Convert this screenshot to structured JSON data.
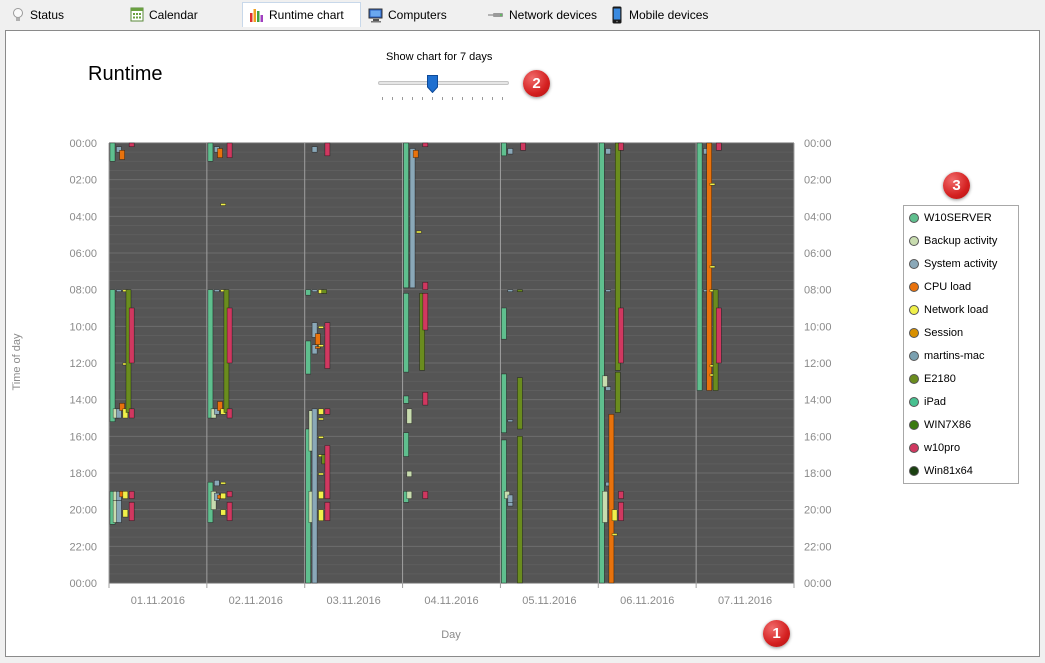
{
  "tabs": [
    {
      "id": "status",
      "label": "Status",
      "icon": "lightbulb-icon"
    },
    {
      "id": "calendar",
      "label": "Calendar",
      "icon": "calendar-icon"
    },
    {
      "id": "runtime",
      "label": "Runtime chart",
      "icon": "bar-chart-icon",
      "active": true
    },
    {
      "id": "computers",
      "label": "Computers",
      "icon": "computer-icon"
    },
    {
      "id": "network",
      "label": "Network devices",
      "icon": "network-device-icon"
    },
    {
      "id": "mobile",
      "label": "Mobile devices",
      "icon": "mobile-phone-icon"
    }
  ],
  "header": {
    "title": "Runtime"
  },
  "slider": {
    "label": "Show chart for 7 days",
    "value": 7,
    "min": 1,
    "max": 14
  },
  "badges": [
    "1",
    "2",
    "3"
  ],
  "legend": [
    {
      "label": "W10SERVER",
      "color": "#5fbf8e"
    },
    {
      "label": "Backup activity",
      "color": "#c8dcaf"
    },
    {
      "label": "System activity",
      "color": "#8aa8b8"
    },
    {
      "label": "CPU load",
      "color": "#e8720c"
    },
    {
      "label": "Network load",
      "color": "#f0f04a"
    },
    {
      "label": "Session",
      "color": "#d89000"
    },
    {
      "label": "martins-mac",
      "color": "#7aa0b0"
    },
    {
      "label": "E2180",
      "color": "#6a8c1e"
    },
    {
      "label": "iPad",
      "color": "#48c090"
    },
    {
      "label": "WIN7X86",
      "color": "#3a7a10"
    },
    {
      "label": "w10pro",
      "color": "#d03860"
    },
    {
      "label": "Win81x64",
      "color": "#1a4010"
    }
  ],
  "chart_data": {
    "type": "bar",
    "xlabel": "Day",
    "ylabel": "Time of day",
    "categories": [
      "01.11.2016",
      "02.11.2016",
      "03.11.2016",
      "04.11.2016",
      "05.11.2016",
      "06.11.2016",
      "07.11.2016"
    ],
    "y_ticks": [
      "00:00",
      "02:00",
      "04:00",
      "06:00",
      "08:00",
      "10:00",
      "12:00",
      "14:00",
      "16:00",
      "18:00",
      "20:00",
      "22:00",
      "00:00"
    ],
    "ylim": [
      "00:00",
      "24:00"
    ],
    "background": "#555555",
    "series": [
      {
        "name": "W10SERVER",
        "color": "#5fbf8e",
        "col": 0,
        "intervals": [
          [
            0,
            0,
            1
          ],
          [
            0,
            8,
            15.2
          ],
          [
            0,
            19,
            20.8
          ],
          [
            1,
            0,
            1
          ],
          [
            1,
            8,
            15
          ],
          [
            1,
            18.5,
            20.7
          ],
          [
            2,
            8,
            8.3
          ],
          [
            2,
            10.8,
            12.6
          ],
          [
            2,
            15.6,
            24
          ],
          [
            3,
            0,
            7.9
          ],
          [
            3,
            8.2,
            12.5
          ],
          [
            3,
            13.8,
            14.2
          ],
          [
            3,
            15.8,
            17.1
          ],
          [
            3,
            19,
            19.6
          ],
          [
            4,
            0,
            0.7
          ],
          [
            4,
            9,
            10.7
          ],
          [
            4,
            12.6,
            15.8
          ],
          [
            4,
            16.2,
            24
          ],
          [
            5,
            0,
            24
          ],
          [
            6,
            0,
            13.5
          ]
        ]
      },
      {
        "name": "Backup activity",
        "color": "#c8dcaf",
        "col": 1,
        "intervals": [
          [
            0,
            14.5,
            15
          ],
          [
            0,
            19,
            19.5
          ],
          [
            0,
            19.5,
            20.7
          ],
          [
            1,
            14.5,
            15
          ],
          [
            1,
            19,
            20
          ],
          [
            2,
            14.6,
            16.8
          ],
          [
            2,
            19,
            20.7
          ],
          [
            3,
            14.5,
            15.3
          ],
          [
            3,
            17.9,
            18.2
          ],
          [
            3,
            19,
            19.4
          ],
          [
            4,
            19,
            19.4
          ],
          [
            5,
            12.7,
            13.3
          ],
          [
            5,
            19,
            20.7
          ]
        ]
      },
      {
        "name": "System activity",
        "color": "#8aa8b8",
        "col": 2,
        "intervals": [
          [
            0,
            0.2,
            0.5
          ],
          [
            0,
            8,
            8.1
          ],
          [
            0,
            14.5,
            15
          ],
          [
            0,
            19,
            19.5
          ],
          [
            0,
            19.5,
            20.7
          ],
          [
            1,
            0.2,
            0.5
          ],
          [
            1,
            8,
            8.1
          ],
          [
            1,
            14.5,
            14.8
          ],
          [
            1,
            18.4,
            18.7
          ],
          [
            1,
            19.1,
            19.5
          ],
          [
            2,
            0.2,
            0.5
          ],
          [
            2,
            8,
            8.1
          ],
          [
            2,
            9.8,
            10.6
          ],
          [
            2,
            11,
            11.5
          ],
          [
            2,
            14.5,
            24
          ],
          [
            3,
            0.3,
            7.9
          ],
          [
            4,
            0.3,
            0.6
          ],
          [
            4,
            8,
            8.1
          ],
          [
            4,
            15.1,
            15.2
          ],
          [
            4,
            19.2,
            19.6
          ],
          [
            4,
            19.6,
            19.8
          ],
          [
            5,
            0.3,
            0.6
          ],
          [
            5,
            8,
            8.1
          ],
          [
            5,
            13.3,
            13.5
          ],
          [
            5,
            18.5,
            18.7
          ],
          [
            6,
            0.3,
            0.6
          ],
          [
            6,
            8,
            8.1
          ]
        ]
      },
      {
        "name": "CPU load",
        "color": "#e8720c",
        "col": 3,
        "intervals": [
          [
            0,
            0.4,
            0.9
          ],
          [
            0,
            14.2,
            14.6
          ],
          [
            0,
            19,
            19.3
          ],
          [
            1,
            0.3,
            0.8
          ],
          [
            1,
            14.1,
            14.6
          ],
          [
            1,
            19.2,
            19.4
          ],
          [
            2,
            10.4,
            11
          ],
          [
            2,
            11.1,
            11.2
          ],
          [
            3,
            0.4,
            0.8
          ],
          [
            5,
            14.8,
            24
          ],
          [
            6,
            0,
            13.5
          ]
        ]
      },
      {
        "name": "Network load",
        "color": "#f0f04a",
        "col": 4,
        "intervals": [
          [
            0,
            8,
            8.1
          ],
          [
            0,
            12,
            12.1
          ],
          [
            0,
            14.5,
            15
          ],
          [
            0,
            19,
            19.4
          ],
          [
            0,
            20,
            20.4
          ],
          [
            1,
            3.3,
            3.4
          ],
          [
            1,
            8,
            8.1
          ],
          [
            1,
            14.5,
            14.8
          ],
          [
            1,
            18.5,
            18.6
          ],
          [
            1,
            19.1,
            19.4
          ],
          [
            1,
            20,
            20.3
          ],
          [
            2,
            8,
            8.2
          ],
          [
            2,
            10,
            10.1
          ],
          [
            2,
            11,
            11.1
          ],
          [
            2,
            14.5,
            14.8
          ],
          [
            2,
            15,
            15.1
          ],
          [
            2,
            16,
            16.1
          ],
          [
            2,
            17,
            17.1
          ],
          [
            2,
            18,
            18.1
          ],
          [
            2,
            19,
            19.4
          ],
          [
            2,
            20,
            20.6
          ],
          [
            3,
            4.8,
            4.9
          ],
          [
            5,
            20,
            20.6
          ],
          [
            5,
            21.3,
            21.4
          ],
          [
            6,
            2.2,
            2.3
          ],
          [
            6,
            6.7,
            6.8
          ],
          [
            6,
            8,
            8.1
          ],
          [
            6,
            12.1,
            12.2
          ],
          [
            6,
            12.6,
            12.7
          ]
        ]
      },
      {
        "name": "E2180",
        "color": "#6a8c1e",
        "col": 5,
        "intervals": [
          [
            0,
            8,
            14.7
          ],
          [
            1,
            8,
            14.7
          ],
          [
            2,
            8,
            8.2
          ],
          [
            2,
            17,
            17.5
          ],
          [
            3,
            8.2,
            12.4
          ],
          [
            4,
            8,
            8.1
          ],
          [
            4,
            12.8,
            15.6
          ],
          [
            4,
            16,
            24
          ],
          [
            5,
            0,
            12.4
          ],
          [
            5,
            12.5,
            14.7
          ],
          [
            6,
            8,
            13.5
          ]
        ]
      },
      {
        "name": "w10pro",
        "color": "#d03860",
        "col": 6,
        "intervals": [
          [
            0,
            0,
            0.2
          ],
          [
            0,
            9,
            12
          ],
          [
            0,
            14.5,
            15
          ],
          [
            0,
            19,
            19.4
          ],
          [
            0,
            19.6,
            20.6
          ],
          [
            1,
            0,
            0.8
          ],
          [
            1,
            9,
            12
          ],
          [
            1,
            14.5,
            15
          ],
          [
            1,
            19,
            19.3
          ],
          [
            1,
            19.6,
            20.6
          ],
          [
            2,
            0,
            0.7
          ],
          [
            2,
            9.8,
            12.3
          ],
          [
            2,
            14.5,
            14.8
          ],
          [
            2,
            16.5,
            19.4
          ],
          [
            2,
            19.6,
            20.6
          ],
          [
            3,
            0,
            0.2
          ],
          [
            3,
            7.6,
            8
          ],
          [
            3,
            8.2,
            10.2
          ],
          [
            3,
            13.6,
            14.3
          ],
          [
            3,
            19,
            19.4
          ],
          [
            4,
            0,
            0.4
          ],
          [
            5,
            0,
            0.4
          ],
          [
            5,
            9,
            12
          ],
          [
            5,
            19,
            19.4
          ],
          [
            5,
            19.6,
            20.6
          ],
          [
            6,
            0,
            0.4
          ],
          [
            6,
            9,
            12
          ]
        ]
      }
    ]
  }
}
